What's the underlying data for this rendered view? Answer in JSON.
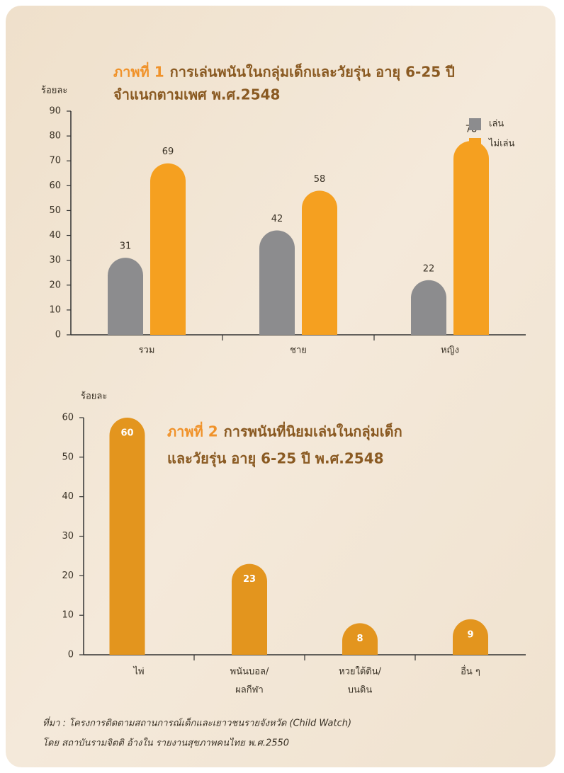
{
  "chart_data": [
    {
      "type": "grouped-bar",
      "figure_label": "ภาพที่ 1",
      "title_lines": [
        "การเล่นพนันในกลุ่มเด็กและวัยรุ่น อายุ 6-25 ปี",
        "จำแนกตามเพศ พ.ศ.2548"
      ],
      "y_label": "ร้อยละ",
      "categories": [
        "รวม",
        "ชาย",
        "หญิง"
      ],
      "series": [
        {
          "name": "เล่น",
          "color": "#8c8c8e",
          "values": [
            31,
            42,
            22
          ]
        },
        {
          "name": "ไม่เล่น",
          "color": "#f5a020",
          "values": [
            69,
            58,
            78
          ]
        }
      ],
      "ylim": [
        0,
        90
      ],
      "yticks": [
        0,
        10,
        20,
        30,
        40,
        50,
        60,
        70,
        80,
        90
      ],
      "legend": "top-right"
    },
    {
      "type": "bar",
      "figure_label": "ภาพที่ 2",
      "title_lines": [
        "การพนันที่นิยมเล่นในกลุ่มเด็ก",
        "และวัยรุ่น อายุ 6-25 ปี พ.ศ.2548"
      ],
      "y_label": "ร้อยละ",
      "categories": [
        [
          "ไพ่"
        ],
        [
          "พนันบอล/",
          "ผลกีฬา"
        ],
        [
          "หวยใต้ดิน/",
          "บนดิน"
        ],
        [
          "อื่น ๆ"
        ]
      ],
      "values": [
        60,
        23,
        8,
        9
      ],
      "color": "#e3951e",
      "ylim": [
        0,
        60
      ],
      "yticks": [
        0,
        10,
        20,
        30,
        40,
        50,
        60
      ]
    }
  ],
  "source_lines": [
    "ที่มา : โครงการติดตามสถานการณ์เด็กและเยาวชนรายจังหวัด (Child Watch)",
    "โดย สถาบันรามจิตติ อ้างใน รายงานสุขภาพคนไทย พ.ศ.2550"
  ]
}
